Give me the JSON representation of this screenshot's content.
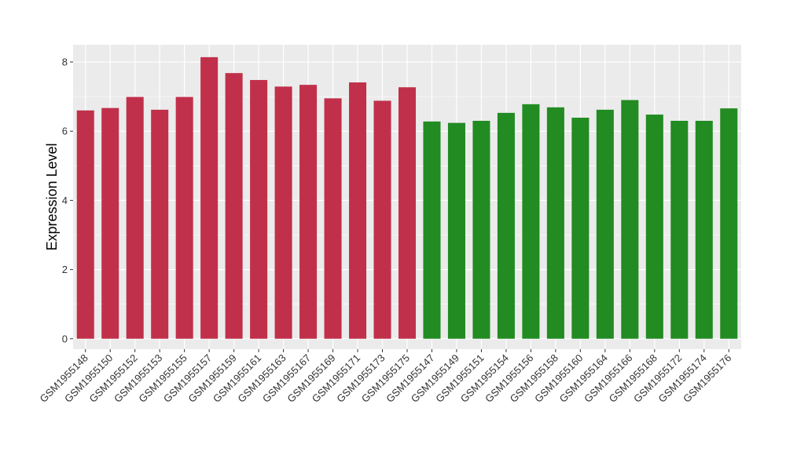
{
  "chart_data": {
    "type": "bar",
    "title": "",
    "xlabel": "",
    "ylabel": "Expression Level",
    "ylim": [
      -0.3,
      8.5
    ],
    "yticks": [
      0,
      2,
      4,
      6,
      8
    ],
    "grid": true,
    "legend": "none",
    "colors": {
      "group_a": "#C1304A",
      "group_b": "#228B22",
      "panel_background": "#EBEBEB",
      "gridline": "#FFFFFF",
      "axis_text": "#333333"
    },
    "bars": [
      {
        "category": "GSM1955148",
        "value": 6.6,
        "group": "group_a"
      },
      {
        "category": "GSM1955150",
        "value": 6.67,
        "group": "group_a"
      },
      {
        "category": "GSM1955152",
        "value": 6.99,
        "group": "group_a"
      },
      {
        "category": "GSM1955153",
        "value": 6.62,
        "group": "group_a"
      },
      {
        "category": "GSM1955155",
        "value": 6.99,
        "group": "group_a"
      },
      {
        "category": "GSM1955157",
        "value": 8.14,
        "group": "group_a"
      },
      {
        "category": "GSM1955159",
        "value": 7.68,
        "group": "group_a"
      },
      {
        "category": "GSM1955161",
        "value": 7.48,
        "group": "group_a"
      },
      {
        "category": "GSM1955163",
        "value": 7.29,
        "group": "group_a"
      },
      {
        "category": "GSM1955167",
        "value": 7.34,
        "group": "group_a"
      },
      {
        "category": "GSM1955169",
        "value": 6.95,
        "group": "group_a"
      },
      {
        "category": "GSM1955171",
        "value": 7.41,
        "group": "group_a"
      },
      {
        "category": "GSM1955173",
        "value": 6.88,
        "group": "group_a"
      },
      {
        "category": "GSM1955175",
        "value": 7.27,
        "group": "group_a"
      },
      {
        "category": "GSM1955147",
        "value": 6.28,
        "group": "group_b"
      },
      {
        "category": "GSM1955149",
        "value": 6.24,
        "group": "group_b"
      },
      {
        "category": "GSM1955151",
        "value": 6.3,
        "group": "group_b"
      },
      {
        "category": "GSM1955154",
        "value": 6.53,
        "group": "group_b"
      },
      {
        "category": "GSM1955156",
        "value": 6.78,
        "group": "group_b"
      },
      {
        "category": "GSM1955158",
        "value": 6.69,
        "group": "group_b"
      },
      {
        "category": "GSM1955160",
        "value": 6.39,
        "group": "group_b"
      },
      {
        "category": "GSM1955164",
        "value": 6.62,
        "group": "group_b"
      },
      {
        "category": "GSM1955166",
        "value": 6.9,
        "group": "group_b"
      },
      {
        "category": "GSM1955168",
        "value": 6.48,
        "group": "group_b"
      },
      {
        "category": "GSM1955172",
        "value": 6.3,
        "group": "group_b"
      },
      {
        "category": "GSM1955174",
        "value": 6.3,
        "group": "group_b"
      },
      {
        "category": "GSM1955176",
        "value": 6.66,
        "group": "group_b"
      }
    ]
  }
}
